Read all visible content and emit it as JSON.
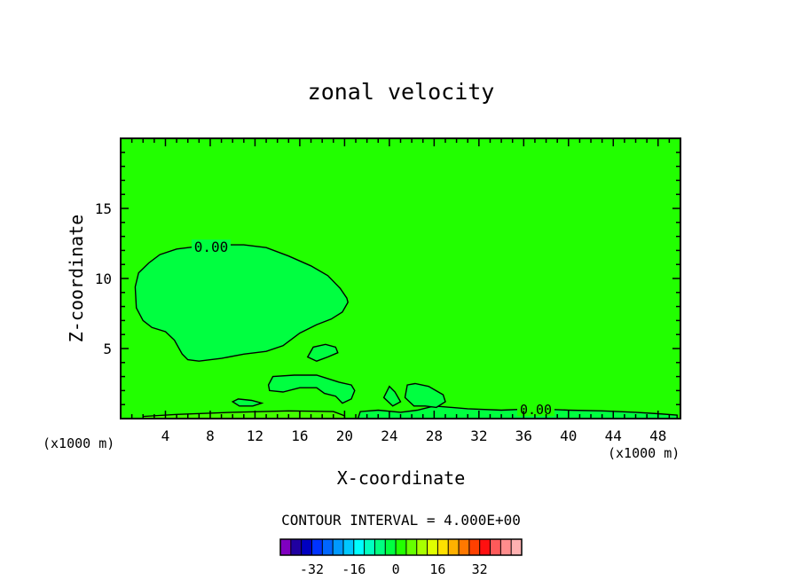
{
  "chart_data": {
    "type": "contour",
    "title": "zonal velocity",
    "xlabel": "X-coordinate",
    "ylabel": "Z-coordinate",
    "x_unit": "(x1000 m)",
    "xlim": [
      0,
      50
    ],
    "ylim": [
      0,
      20
    ],
    "x_ticks": [
      4,
      8,
      12,
      16,
      20,
      24,
      28,
      32,
      36,
      40,
      44,
      48
    ],
    "y_ticks": [
      5,
      10,
      15
    ],
    "background_field_color": "#22ff00",
    "contour_interval_label": "CONTOUR INTERVAL = 4.000E+00",
    "contour_labels": [
      "0.00",
      "0.00"
    ],
    "regions": [
      {
        "name": "upper-left-cell",
        "color": "#00ff40",
        "points": [
          [
            1.3,
            9.4
          ],
          [
            1.6,
            10.4
          ],
          [
            2.5,
            11.1
          ],
          [
            3.5,
            11.7
          ],
          [
            5,
            12.1
          ],
          [
            7,
            12.3
          ],
          [
            9,
            12.4
          ],
          [
            11,
            12.4
          ],
          [
            13,
            12.2
          ],
          [
            15,
            11.6
          ],
          [
            17,
            10.9
          ],
          [
            18.5,
            10.2
          ],
          [
            19.6,
            9.3
          ],
          [
            20.2,
            8.6
          ],
          [
            20.3,
            8.3
          ],
          [
            19.8,
            7.6
          ],
          [
            18.8,
            7.1
          ],
          [
            17.5,
            6.7
          ],
          [
            16,
            6.1
          ],
          [
            14.5,
            5.2
          ],
          [
            13,
            4.8
          ],
          [
            11,
            4.6
          ],
          [
            9,
            4.3
          ],
          [
            7,
            4.1
          ],
          [
            6,
            4.2
          ],
          [
            5.5,
            4.6
          ],
          [
            4.8,
            5.6
          ],
          [
            4,
            6.2
          ],
          [
            2.8,
            6.5
          ],
          [
            2,
            7
          ],
          [
            1.4,
            7.9
          ],
          [
            1.3,
            9.4
          ]
        ]
      },
      {
        "name": "small-cell-a",
        "color": "#00ff40",
        "points": [
          [
            16.7,
            4.4
          ],
          [
            17.2,
            5.1
          ],
          [
            18.3,
            5.3
          ],
          [
            19.2,
            5.1
          ],
          [
            19.4,
            4.7
          ],
          [
            18.5,
            4.4
          ],
          [
            17.5,
            4.1
          ],
          [
            16.7,
            4.4
          ]
        ]
      },
      {
        "name": "small-cell-b",
        "color": "#00ff40",
        "points": [
          [
            13.2,
            2.4
          ],
          [
            13.6,
            3
          ],
          [
            15.5,
            3.1
          ],
          [
            17.5,
            3.1
          ],
          [
            19.5,
            2.6
          ],
          [
            20.6,
            2.4
          ],
          [
            20.9,
            2
          ],
          [
            20.6,
            1.4
          ],
          [
            19.8,
            1.1
          ],
          [
            19.2,
            1.6
          ],
          [
            18.2,
            1.8
          ],
          [
            17.5,
            2.2
          ],
          [
            16,
            2.2
          ],
          [
            14.5,
            1.9
          ],
          [
            13.3,
            2
          ],
          [
            13.2,
            2.4
          ]
        ]
      },
      {
        "name": "small-cell-c",
        "color": "#00ff40",
        "points": [
          [
            10,
            1.2
          ],
          [
            10.5,
            1.4
          ],
          [
            11.7,
            1.3
          ],
          [
            12.6,
            1.1
          ],
          [
            11.8,
            0.9
          ],
          [
            10.6,
            0.9
          ],
          [
            10,
            1.2
          ]
        ]
      },
      {
        "name": "near-ground-strip",
        "color": "#44ff00",
        "points": [
          [
            2,
            0
          ],
          [
            2,
            0.15
          ],
          [
            5,
            0.3
          ],
          [
            10,
            0.45
          ],
          [
            15,
            0.55
          ],
          [
            19,
            0.5
          ],
          [
            20,
            0.2
          ],
          [
            20,
            0
          ]
        ]
      },
      {
        "name": "lower-right-cell",
        "color": "#00ff40",
        "points": [
          [
            21.2,
            0
          ],
          [
            21.4,
            0.5
          ],
          [
            23,
            0.6
          ],
          [
            25,
            0.45
          ],
          [
            26.5,
            0.6
          ],
          [
            28,
            0.9
          ],
          [
            31,
            0.7
          ],
          [
            34,
            0.6
          ],
          [
            37,
            0.7
          ],
          [
            40,
            0.6
          ],
          [
            43,
            0.55
          ],
          [
            46,
            0.45
          ],
          [
            48,
            0.35
          ],
          [
            49.7,
            0.25
          ],
          [
            49.7,
            0
          ]
        ]
      },
      {
        "name": "bump-cell-a",
        "color": "#00ff40",
        "points": [
          [
            23.5,
            1.5
          ],
          [
            24,
            2.3
          ],
          [
            24.5,
            1.9
          ],
          [
            25,
            1.2
          ],
          [
            24.3,
            0.9
          ],
          [
            23.5,
            1.5
          ]
        ]
      },
      {
        "name": "bump-cell-b",
        "color": "#00ff40",
        "points": [
          [
            25.4,
            1.5
          ],
          [
            25.6,
            2.4
          ],
          [
            26.3,
            2.5
          ],
          [
            27.5,
            2.3
          ],
          [
            28.8,
            1.7
          ],
          [
            29,
            1.2
          ],
          [
            28.2,
            0.8
          ],
          [
            27.2,
            0.9
          ],
          [
            26.2,
            0.9
          ],
          [
            25.4,
            1.5
          ]
        ]
      }
    ],
    "colorbar": {
      "colors": [
        "#8000c0",
        "#2000a0",
        "#0000c0",
        "#0033ff",
        "#0066ff",
        "#0099ff",
        "#00c8ff",
        "#00ffff",
        "#00ffc0",
        "#00ff80",
        "#00ff40",
        "#22ff00",
        "#66ff00",
        "#a8ff00",
        "#e0ff00",
        "#ffe000",
        "#ffb000",
        "#ff7800",
        "#ff4000",
        "#ff1010",
        "#ff5a5a",
        "#ff8c8c",
        "#ffb0b0"
      ],
      "tick_values": [
        -32,
        -16,
        0,
        16,
        32
      ],
      "range": [
        -44,
        48
      ]
    }
  }
}
